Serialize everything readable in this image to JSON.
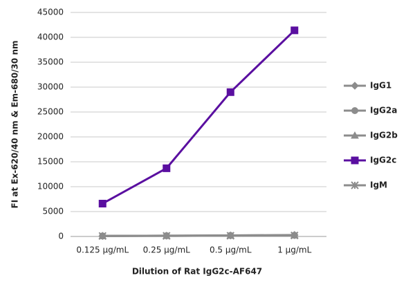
{
  "chart_data": {
    "type": "line",
    "y_label": "FI at Ex-620/40 nm & Em-680/30 nm",
    "x_label": "Dilution of Rat IgG2c-AF647",
    "categories": [
      "0.125 µg/mL",
      "0.25 µg/mL",
      "0.5 µg/mL",
      "1 µg/mL"
    ],
    "series": [
      {
        "name": "IgG1",
        "color": "#8c8c8c",
        "marker": "diamond",
        "values": [
          100,
          150,
          200,
          300
        ]
      },
      {
        "name": "IgG2a",
        "color": "#8c8c8c",
        "marker": "circle",
        "values": [
          100,
          150,
          200,
          250
        ]
      },
      {
        "name": "IgG2b",
        "color": "#8c8c8c",
        "marker": "triangle",
        "values": [
          100,
          120,
          180,
          250
        ]
      },
      {
        "name": "IgG2c",
        "color": "#5a0fa0",
        "marker": "square",
        "values": [
          6600,
          13700,
          29000,
          41400
        ]
      },
      {
        "name": "IgM",
        "color": "#8c8c8c",
        "marker": "star",
        "values": [
          100,
          120,
          150,
          200
        ]
      }
    ],
    "ylim": [
      0,
      45000
    ],
    "yticks": [
      0,
      5000,
      10000,
      15000,
      20000,
      25000,
      30000,
      35000,
      40000,
      45000
    ],
    "grid": true,
    "legend": "right"
  }
}
